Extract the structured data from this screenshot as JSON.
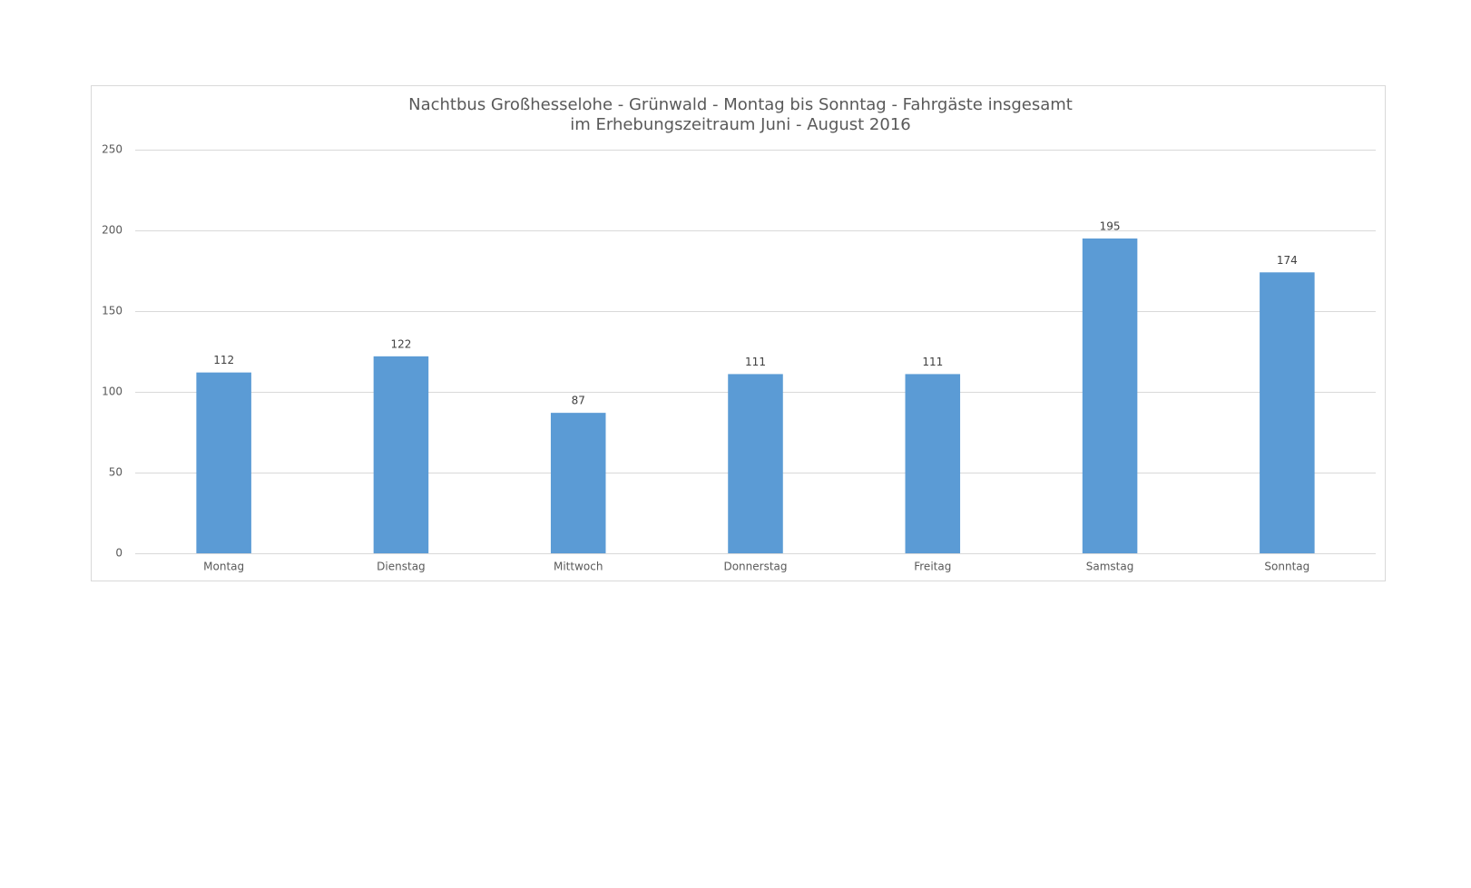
{
  "chart_data": {
    "type": "bar",
    "title": "Nachtbus Großhesselohe - Grünwald - Montag bis Sonntag - Fahrgäste insgesamt",
    "subtitle": "im Erhebungszeitraum  Juni - August 2016",
    "categories": [
      "Montag",
      "Dienstag",
      "Mittwoch",
      "Donnerstag",
      "Freitag",
      "Samstag",
      "Sonntag"
    ],
    "values": [
      112,
      122,
      87,
      111,
      111,
      195,
      174
    ],
    "color": "#5b9bd5",
    "ylim": [
      0,
      250
    ],
    "yticks": [
      0,
      50,
      100,
      150,
      200,
      250
    ],
    "grid": true
  }
}
